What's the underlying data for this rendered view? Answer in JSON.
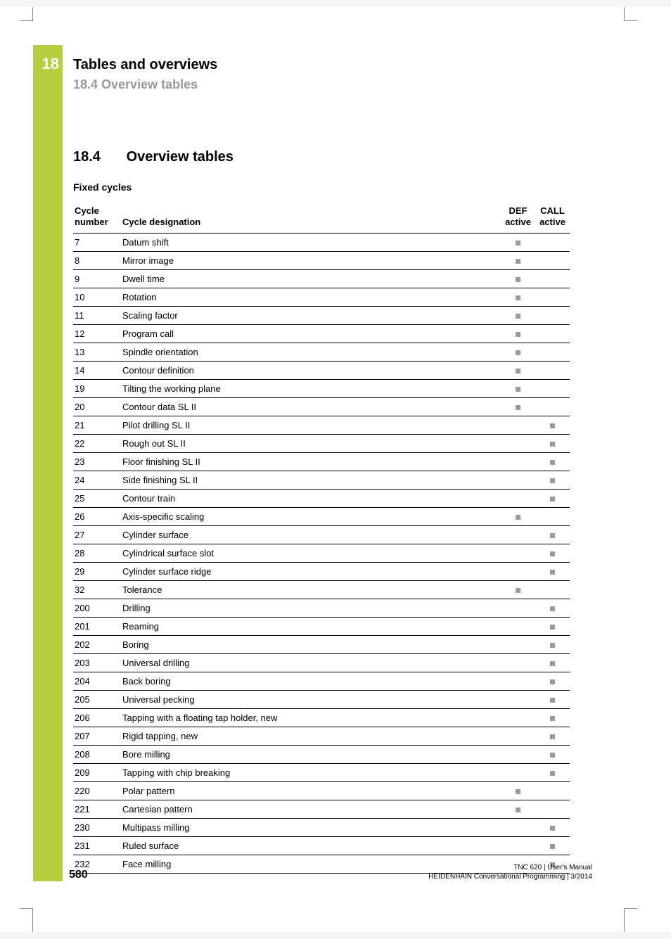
{
  "accent_color": "#b6ce3f",
  "chapter_number": "18",
  "heading1": "Tables and overviews",
  "heading2": "18.4   Overview tables",
  "section_number": "18.4",
  "section_title": "Overview tables",
  "subheading": "Fixed cycles",
  "table": {
    "columns": {
      "num": "Cycle number",
      "des": "Cycle designation",
      "def": "DEF active",
      "call": "CALL active"
    },
    "rows": [
      {
        "num": "7",
        "des": "Datum shift",
        "def": true,
        "call": false
      },
      {
        "num": "8",
        "des": "Mirror image",
        "def": true,
        "call": false
      },
      {
        "num": "9",
        "des": "Dwell time",
        "def": true,
        "call": false
      },
      {
        "num": "10",
        "des": "Rotation",
        "def": true,
        "call": false
      },
      {
        "num": "11",
        "des": "Scaling factor",
        "def": true,
        "call": false
      },
      {
        "num": "12",
        "des": "Program call",
        "def": true,
        "call": false
      },
      {
        "num": "13",
        "des": "Spindle orientation",
        "def": true,
        "call": false
      },
      {
        "num": "14",
        "des": "Contour definition",
        "def": true,
        "call": false
      },
      {
        "num": "19",
        "des": "Tilting the working plane",
        "def": true,
        "call": false
      },
      {
        "num": "20",
        "des": "Contour data SL II",
        "def": true,
        "call": false
      },
      {
        "num": "21",
        "des": "Pilot drilling SL II",
        "def": false,
        "call": true
      },
      {
        "num": "22",
        "des": "Rough out SL II",
        "def": false,
        "call": true
      },
      {
        "num": "23",
        "des": "Floor finishing SL II",
        "def": false,
        "call": true
      },
      {
        "num": "24",
        "des": "Side finishing SL II",
        "def": false,
        "call": true
      },
      {
        "num": "25",
        "des": "Contour train",
        "def": false,
        "call": true
      },
      {
        "num": "26",
        "des": "Axis-specific scaling",
        "def": true,
        "call": false
      },
      {
        "num": "27",
        "des": "Cylinder surface",
        "def": false,
        "call": true
      },
      {
        "num": "28",
        "des": "Cylindrical surface slot",
        "def": false,
        "call": true
      },
      {
        "num": "29",
        "des": "Cylinder surface ridge",
        "def": false,
        "call": true
      },
      {
        "num": "32",
        "des": "Tolerance",
        "def": true,
        "call": false
      },
      {
        "num": "200",
        "des": "Drilling",
        "def": false,
        "call": true
      },
      {
        "num": "201",
        "des": "Reaming",
        "def": false,
        "call": true
      },
      {
        "num": "202",
        "des": "Boring",
        "def": false,
        "call": true
      },
      {
        "num": "203",
        "des": "Universal drilling",
        "def": false,
        "call": true
      },
      {
        "num": "204",
        "des": "Back boring",
        "def": false,
        "call": true
      },
      {
        "num": "205",
        "des": "Universal pecking",
        "def": false,
        "call": true
      },
      {
        "num": "206",
        "des": "Tapping with a floating tap holder, new",
        "def": false,
        "call": true
      },
      {
        "num": "207",
        "des": "Rigid tapping, new",
        "def": false,
        "call": true
      },
      {
        "num": "208",
        "des": "Bore milling",
        "def": false,
        "call": true
      },
      {
        "num": "209",
        "des": "Tapping with chip breaking",
        "def": false,
        "call": true
      },
      {
        "num": "220",
        "des": "Polar pattern",
        "def": true,
        "call": false
      },
      {
        "num": "221",
        "des": "Cartesian pattern",
        "def": true,
        "call": false
      },
      {
        "num": "230",
        "des": "Multipass milling",
        "def": false,
        "call": true
      },
      {
        "num": "231",
        "des": "Ruled surface",
        "def": false,
        "call": true
      },
      {
        "num": "232",
        "des": "Face milling",
        "def": false,
        "call": true
      }
    ]
  },
  "footer": {
    "page_number": "580",
    "line1": "TNC 620 | User's Manual",
    "line2": "HEIDENHAIN Conversational Programming | 3/2014"
  }
}
